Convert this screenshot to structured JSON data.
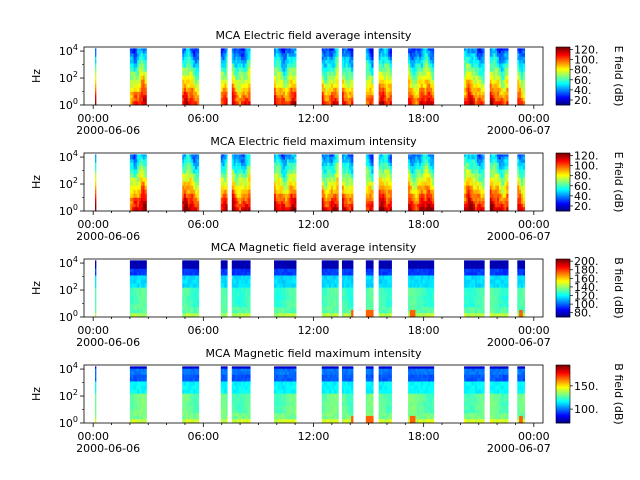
{
  "chart_data": [
    {
      "type": "heatmap",
      "title": "MCA  Electric field average intensity",
      "ylabel": "Hz",
      "y_ticks": [
        {
          "base": "10",
          "exp": "0"
        },
        {
          "base": "10",
          "exp": "2"
        },
        {
          "base": "10",
          "exp": "4"
        }
      ],
      "x_ticks": [
        "00:00",
        "06:00",
        "12:00",
        "18:00",
        "00:00"
      ],
      "x_date_labels": [
        "2000-06-06",
        "2000-06-07"
      ],
      "colorbar": {
        "label": "E field (dB)",
        "ticks": [
          "20.",
          "40.",
          "60.",
          "80.",
          "100.",
          "120."
        ],
        "range": [
          10,
          125
        ],
        "scheme": "jet"
      },
      "scale": "log",
      "yrange": [
        1,
        20000
      ],
      "xrange_hours": [
        -0.5,
        24.5
      ],
      "coverage_hours": [
        [
          0.1,
          0.15
        ],
        [
          2.0,
          2.9
        ],
        [
          4.85,
          5.75
        ],
        [
          6.95,
          7.3
        ],
        [
          7.55,
          8.55
        ],
        [
          9.85,
          11.05
        ],
        [
          12.45,
          13.35
        ],
        [
          13.55,
          14.15
        ],
        [
          14.85,
          15.25
        ],
        [
          15.55,
          16.25
        ],
        [
          17.15,
          18.55
        ],
        [
          20.2,
          21.3
        ],
        [
          21.6,
          22.6
        ],
        [
          23.1,
          23.5
        ]
      ],
      "profile": "electric"
    },
    {
      "type": "heatmap",
      "title": "MCA  Electric field maximum intensity",
      "ylabel": "Hz",
      "y_ticks": [
        {
          "base": "10",
          "exp": "0"
        },
        {
          "base": "10",
          "exp": "2"
        },
        {
          "base": "10",
          "exp": "4"
        }
      ],
      "x_ticks": [
        "00:00",
        "06:00",
        "12:00",
        "18:00",
        "00:00"
      ],
      "x_date_labels": [
        "2000-06-06",
        "2000-06-07"
      ],
      "colorbar": {
        "label": "E field (dB)",
        "ticks": [
          "20.",
          "40.",
          "60.",
          "80.",
          "100.",
          "120."
        ],
        "range": [
          10,
          125
        ],
        "scheme": "jet"
      },
      "scale": "log",
      "yrange": [
        1,
        20000
      ],
      "xrange_hours": [
        -0.5,
        24.5
      ],
      "coverage_hours": [
        [
          0.1,
          0.15
        ],
        [
          2.0,
          2.9
        ],
        [
          4.85,
          5.75
        ],
        [
          6.95,
          7.3
        ],
        [
          7.55,
          8.55
        ],
        [
          9.85,
          11.05
        ],
        [
          12.45,
          13.35
        ],
        [
          13.55,
          14.15
        ],
        [
          14.85,
          15.25
        ],
        [
          15.55,
          16.25
        ],
        [
          17.15,
          18.55
        ],
        [
          20.2,
          21.3
        ],
        [
          21.6,
          22.6
        ],
        [
          23.1,
          23.5
        ]
      ],
      "profile": "electric_max"
    },
    {
      "type": "heatmap",
      "title": "MCA  Magnetic field average intensity",
      "ylabel": "Hz",
      "y_ticks": [
        {
          "base": "10",
          "exp": "0"
        },
        {
          "base": "10",
          "exp": "2"
        },
        {
          "base": "10",
          "exp": "4"
        }
      ],
      "x_ticks": [
        "00:00",
        "06:00",
        "12:00",
        "18:00",
        "00:00"
      ],
      "x_date_labels": [
        "2000-06-06",
        "2000-06-07"
      ],
      "colorbar": {
        "label": "B field (dB)",
        "ticks": [
          "80.",
          "100.",
          "120.",
          "140.",
          "160.",
          "180.",
          "200."
        ],
        "range": [
          70,
          205
        ],
        "scheme": "jet"
      },
      "scale": "log",
      "yrange": [
        1,
        20000
      ],
      "xrange_hours": [
        -0.5,
        24.5
      ],
      "coverage_hours": [
        [
          0.1,
          0.15
        ],
        [
          2.0,
          2.9
        ],
        [
          4.85,
          5.75
        ],
        [
          6.95,
          7.3
        ],
        [
          7.55,
          8.55
        ],
        [
          9.85,
          11.05
        ],
        [
          12.45,
          13.35
        ],
        [
          13.55,
          14.15
        ],
        [
          14.85,
          15.25
        ],
        [
          15.55,
          16.25
        ],
        [
          17.15,
          18.55
        ],
        [
          20.2,
          21.3
        ],
        [
          21.6,
          22.6
        ],
        [
          23.1,
          23.5
        ]
      ],
      "profile": "magnetic"
    },
    {
      "type": "heatmap",
      "title": "MCA  Magnetic field maximum intensity",
      "ylabel": "Hz",
      "y_ticks": [
        {
          "base": "10",
          "exp": "0"
        },
        {
          "base": "10",
          "exp": "2"
        },
        {
          "base": "10",
          "exp": "4"
        }
      ],
      "x_ticks": [
        "00:00",
        "06:00",
        "12:00",
        "18:00",
        "00:00"
      ],
      "x_date_labels": [
        "2000-06-06",
        "2000-06-07"
      ],
      "colorbar": {
        "label": "B field (dB)",
        "ticks": [
          "100.",
          "150."
        ],
        "range": [
          70,
          195
        ],
        "scheme": "jet"
      },
      "scale": "log",
      "yrange": [
        1,
        20000
      ],
      "xrange_hours": [
        -0.5,
        24.5
      ],
      "coverage_hours": [
        [
          0.1,
          0.15
        ],
        [
          2.0,
          2.9
        ],
        [
          4.85,
          5.75
        ],
        [
          6.95,
          7.3
        ],
        [
          7.55,
          8.55
        ],
        [
          9.85,
          11.05
        ],
        [
          12.45,
          13.35
        ],
        [
          13.55,
          14.15
        ],
        [
          14.85,
          15.25
        ],
        [
          15.55,
          16.25
        ],
        [
          17.15,
          18.55
        ],
        [
          20.2,
          21.3
        ],
        [
          21.6,
          22.6
        ],
        [
          23.1,
          23.5
        ]
      ],
      "profile": "magnetic_max"
    }
  ]
}
